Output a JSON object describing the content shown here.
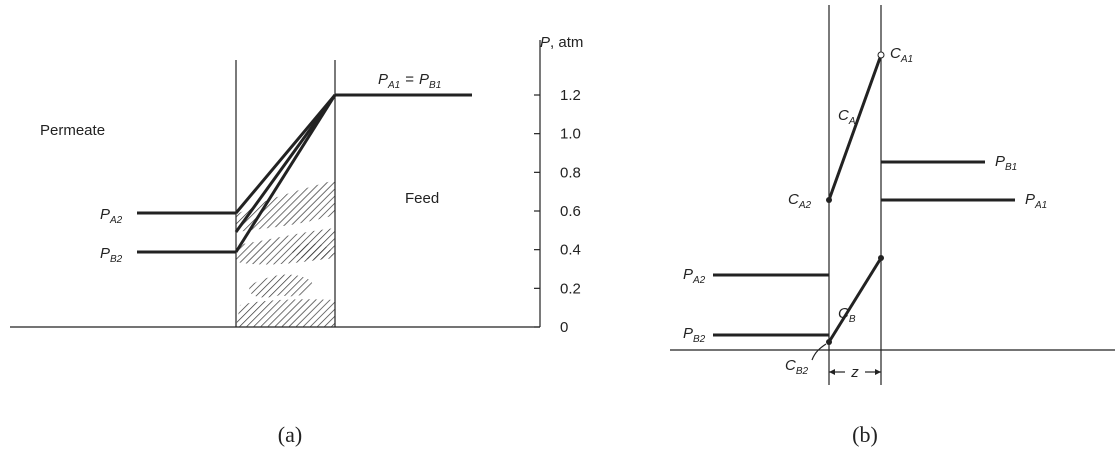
{
  "panel_a": {
    "left_label": "Permeate",
    "right_label": "Feed",
    "axis": {
      "symbol": "P",
      "unit": ", atm",
      "ticks": [
        0,
        0.2,
        0.4,
        0.6,
        0.8,
        1.0,
        1.2
      ]
    },
    "pa2": {
      "symbol": "P",
      "sub": "A2"
    },
    "pb2": {
      "symbol": "P",
      "sub": "B2"
    },
    "feed_eq": {
      "left": {
        "symbol": "P",
        "sub": "A1"
      },
      "op": "=",
      "right": {
        "symbol": "P",
        "sub": "B1"
      }
    },
    "caption": "(a)"
  },
  "panel_b": {
    "ca1": {
      "symbol": "C",
      "sub": "A1"
    },
    "ca": {
      "symbol": "C",
      "sub": "A"
    },
    "ca2": {
      "symbol": "C",
      "sub": "A2"
    },
    "pb1": {
      "symbol": "P",
      "sub": "B1"
    },
    "pa1": {
      "symbol": "P",
      "sub": "A1"
    },
    "pa2": {
      "symbol": "P",
      "sub": "A2"
    },
    "cb": {
      "symbol": "C",
      "sub": "B"
    },
    "pb2": {
      "symbol": "P",
      "sub": "B2"
    },
    "cb2": {
      "symbol": "C",
      "sub": "B2"
    },
    "z": "z",
    "caption": "(b)"
  }
}
